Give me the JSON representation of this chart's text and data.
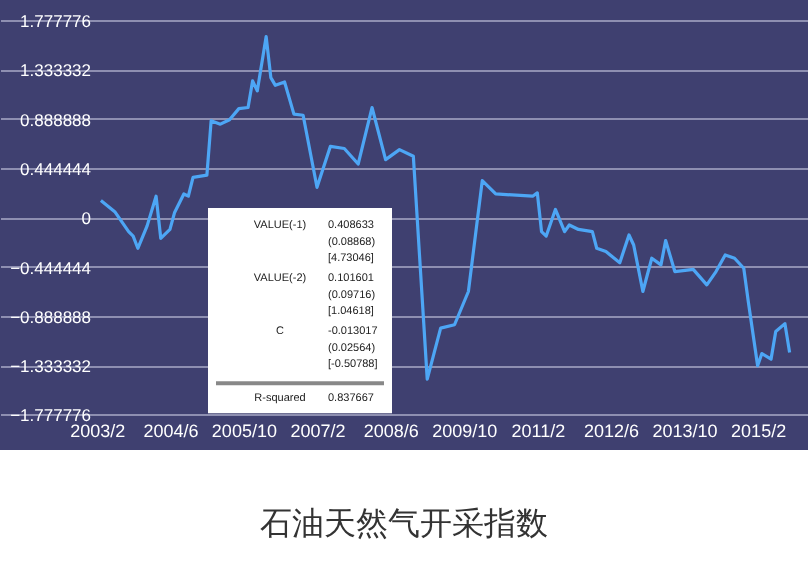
{
  "chart_data": {
    "type": "line",
    "title": "石油天然气开采指数",
    "x": [
      "2003-03",
      "2003-06",
      "2003-09",
      "2003-10",
      "2003-11",
      "2004-01",
      "2004-03",
      "2004-04",
      "2004-06",
      "2004-07",
      "2004-09",
      "2004-10",
      "2004-11",
      "2005-02",
      "2005-03",
      "2005-05",
      "2005-07",
      "2005-09",
      "2005-11",
      "2005-12",
      "2006-01",
      "2006-03",
      "2006-04",
      "2006-05",
      "2006-07",
      "2006-09",
      "2006-11",
      "2007-02",
      "2007-05",
      "2007-08",
      "2007-11",
      "2008-02",
      "2008-05",
      "2008-08",
      "2008-11",
      "2009-02",
      "2009-05",
      "2009-08",
      "2009-11",
      "2010-02",
      "2010-05",
      "2011-01",
      "2011-02",
      "2011-03",
      "2011-04",
      "2011-06",
      "2011-08",
      "2011-09",
      "2011-11",
      "2012-02",
      "2012-03",
      "2012-05",
      "2012-08",
      "2012-10",
      "2012-11",
      "2013-01",
      "2013-03",
      "2013-05",
      "2013-06",
      "2013-08",
      "2013-12",
      "2014-03",
      "2014-05",
      "2014-07",
      "2014-09",
      "2014-11",
      "2014-12",
      "2015-02",
      "2015-03",
      "2015-05",
      "2015-06",
      "2015-08",
      "2015-09"
    ],
    "series": [
      {
        "color": "#4da6f5",
        "values": [
          0.15,
          0.05,
          -0.13,
          -0.17,
          -0.28,
          -0.08,
          0.19,
          -0.19,
          -0.11,
          0.04,
          0.21,
          0.19,
          0.36,
          0.38,
          0.87,
          0.84,
          0.88,
          0.98,
          0.99,
          1.23,
          1.14,
          1.63,
          1.26,
          1.19,
          1.22,
          0.93,
          0.92,
          0.27,
          0.64,
          0.62,
          0.48,
          0.99,
          0.52,
          0.61,
          0.55,
          -1.46,
          -1.0,
          -0.97,
          -0.67,
          0.33,
          0.21,
          0.19,
          0.22,
          -0.13,
          -0.17,
          0.07,
          -0.13,
          -0.07,
          -0.11,
          -0.13,
          -0.28,
          -0.31,
          -0.41,
          -0.16,
          -0.25,
          -0.67,
          -0.37,
          -0.43,
          -0.21,
          -0.49,
          -0.47,
          -0.61,
          -0.49,
          -0.34,
          -0.37,
          -0.46,
          -0.76,
          -1.34,
          -1.23,
          -1.28,
          -1.03,
          -0.96,
          -1.22
        ]
      }
    ],
    "xlim": [
      "2001-05",
      "2016-01"
    ],
    "xticks": [
      {
        "value": "2003-02",
        "label": "2003/2"
      },
      {
        "value": "2004-06",
        "label": "2004/6"
      },
      {
        "value": "2005-10",
        "label": "2005/10"
      },
      {
        "value": "2007-02",
        "label": "2007/2"
      },
      {
        "value": "2008-06",
        "label": "2008/6"
      },
      {
        "value": "2009-10",
        "label": "2009/10"
      },
      {
        "value": "2011-02",
        "label": "2011/2"
      },
      {
        "value": "2012-06",
        "label": "2012/6"
      },
      {
        "value": "2013-10",
        "label": "2013/10"
      },
      {
        "value": "2015-02",
        "label": "2015/2"
      }
    ],
    "ylim": [
      -2.1,
      1.96
    ],
    "yticks": [
      1.777776,
      1.333332,
      0.888888,
      0.444444,
      0,
      -0.444444,
      -0.888888,
      -1.333332,
      -1.777776
    ],
    "grid": "y",
    "annotations": [
      "VALUE(-1)",
      "0.408633",
      "(0.08868)",
      "[4.73046]",
      "VALUE(-2)",
      "0.101601",
      "(0.09716)",
      "[1.04618]",
      "C",
      "-0.013017",
      "(0.02564)",
      "[-0.50788]",
      "R-squared",
      "0.837667"
    ]
  }
}
